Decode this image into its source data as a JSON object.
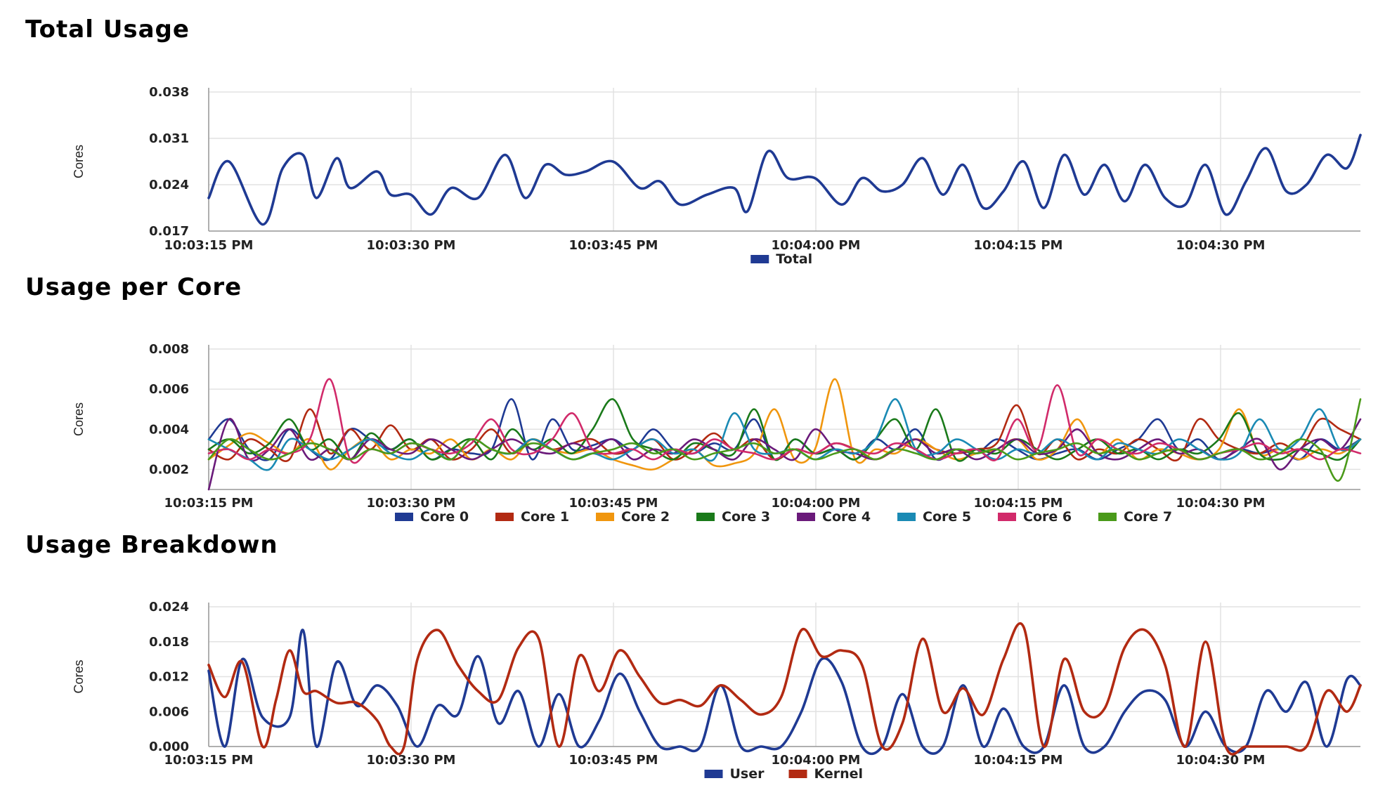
{
  "chart_data": [
    {
      "type": "line",
      "title": "Total Usage",
      "ylabel": "Cores",
      "xlabel": "",
      "ylim": [
        0.017,
        0.038
      ],
      "yticks": [
        "0.038",
        "0.031",
        "0.024",
        "0.017"
      ],
      "x_ticks": [
        "10:03:15 PM",
        "10:03:30 PM",
        "10:03:45 PM",
        "10:04:00 PM",
        "10:04:15 PM",
        "10:04:30 PM"
      ],
      "x_range": [
        0,
        85.5
      ],
      "grid": true,
      "legend_position": "bottom-center",
      "series": [
        {
          "name": "Total",
          "color": "#1f3a93",
          "x": [
            0,
            1.5,
            4,
            5.5,
            7,
            8,
            9.5,
            10.5,
            12.5,
            13.5,
            15,
            16.5,
            18,
            20,
            22,
            23.5,
            25,
            26.5,
            28,
            30,
            32,
            33.5,
            35,
            37,
            39,
            40,
            41.5,
            43,
            45,
            47,
            48.5,
            50,
            51.5,
            53,
            54.5,
            56,
            57.5,
            59,
            60.5,
            62,
            63.5,
            65,
            66.5,
            68,
            69.5,
            71,
            72.5,
            74,
            75.5,
            77,
            78.5,
            80,
            81.5,
            83,
            84.5,
            85.5
          ],
          "values": [
            0.022,
            0.0275,
            0.018,
            0.0265,
            0.0285,
            0.022,
            0.028,
            0.0235,
            0.026,
            0.0225,
            0.0225,
            0.0195,
            0.0235,
            0.022,
            0.0285,
            0.022,
            0.027,
            0.0255,
            0.026,
            0.0275,
            0.0235,
            0.0245,
            0.021,
            0.0225,
            0.0235,
            0.02,
            0.029,
            0.025,
            0.025,
            0.021,
            0.025,
            0.023,
            0.024,
            0.028,
            0.0225,
            0.027,
            0.0205,
            0.023,
            0.0275,
            0.0205,
            0.0285,
            0.0225,
            0.027,
            0.0215,
            0.027,
            0.022,
            0.021,
            0.027,
            0.0195,
            0.0245,
            0.0295,
            0.023,
            0.024,
            0.0285,
            0.0265,
            0.0315
          ]
        }
      ]
    },
    {
      "type": "line",
      "title": "Usage per Core",
      "ylabel": "Cores",
      "xlabel": "",
      "ylim": [
        0.001,
        0.008
      ],
      "yticks": [
        "0.008",
        "0.006",
        "0.004",
        "0.002"
      ],
      "x_ticks": [
        "10:03:15 PM",
        "10:03:30 PM",
        "10:03:45 PM",
        "10:04:00 PM",
        "10:04:15 PM",
        "10:04:30 PM"
      ],
      "x_range": [
        0,
        85.5
      ],
      "grid": true,
      "legend_position": "bottom-center",
      "x": [
        0,
        1.5,
        3,
        4.5,
        6,
        7.5,
        9,
        10.5,
        12,
        13.5,
        15,
        16.5,
        18,
        19.5,
        21,
        22.5,
        24,
        25.5,
        27,
        28.5,
        30,
        31.5,
        33,
        34.5,
        36,
        37.5,
        39,
        40.5,
        42,
        43.5,
        45,
        46.5,
        48,
        49.5,
        51,
        52.5,
        54,
        55.5,
        57,
        58.5,
        60,
        61.5,
        63,
        64.5,
        66,
        67.5,
        69,
        70.5,
        72,
        73.5,
        75,
        76.5,
        78,
        79.5,
        81,
        82.5,
        84,
        85.5
      ],
      "series": [
        {
          "name": "Core 0",
          "color": "#1f3a93",
          "values": [
            0.0035,
            0.0045,
            0.003,
            0.0025,
            0.004,
            0.003,
            0.0025,
            0.004,
            0.0035,
            0.003,
            0.0035,
            0.0025,
            0.003,
            0.0028,
            0.003,
            0.0055,
            0.0025,
            0.0045,
            0.003,
            0.0032,
            0.0035,
            0.003,
            0.004,
            0.003,
            0.0028,
            0.0033,
            0.003,
            0.0045,
            0.0025,
            0.0035,
            0.0028,
            0.003,
            0.0025,
            0.0035,
            0.003,
            0.004,
            0.0025,
            0.003,
            0.0028,
            0.0035,
            0.003,
            0.0025,
            0.0028,
            0.003,
            0.0025,
            0.003,
            0.0035,
            0.0045,
            0.003,
            0.0035,
            0.0025,
            0.003,
            0.0028,
            0.003,
            0.0025,
            0.0035,
            0.003,
            0.0035
          ]
        },
        {
          "name": "Core 1",
          "color": "#b22a12",
          "values": [
            0.003,
            0.0025,
            0.0035,
            0.003,
            0.0025,
            0.005,
            0.0028,
            0.004,
            0.003,
            0.0042,
            0.003,
            0.0035,
            0.0025,
            0.003,
            0.004,
            0.0028,
            0.0035,
            0.003,
            0.0033,
            0.0035,
            0.0028,
            0.003,
            0.0035,
            0.0025,
            0.003,
            0.0038,
            0.003,
            0.0035,
            0.0025,
            0.003,
            0.0028,
            0.0033,
            0.003,
            0.0025,
            0.003,
            0.0035,
            0.003,
            0.0028,
            0.003,
            0.0033,
            0.0052,
            0.0028,
            0.0035,
            0.0025,
            0.003,
            0.0028,
            0.0035,
            0.003,
            0.0025,
            0.0045,
            0.0035,
            0.003,
            0.0028,
            0.0033,
            0.003,
            0.0045,
            0.004,
            0.0035
          ]
        },
        {
          "name": "Core 2",
          "color": "#f0960e",
          "values": [
            0.0025,
            0.0032,
            0.0038,
            0.0033,
            0.0028,
            0.0035,
            0.002,
            0.003,
            0.0035,
            0.0025,
            0.003,
            0.0028,
            0.0035,
            0.0025,
            0.003,
            0.0025,
            0.0035,
            0.003,
            0.0028,
            0.003,
            0.0025,
            0.0022,
            0.002,
            0.0025,
            0.003,
            0.0022,
            0.0023,
            0.0028,
            0.005,
            0.0025,
            0.003,
            0.0065,
            0.0025,
            0.003,
            0.0028,
            0.0035,
            0.003,
            0.0025,
            0.0028,
            0.003,
            0.0035,
            0.0025,
            0.003,
            0.0045,
            0.0028,
            0.0035,
            0.0025,
            0.003,
            0.0028,
            0.0025,
            0.003,
            0.005,
            0.0028,
            0.003,
            0.0025,
            0.003,
            0.0028,
            0.0035
          ]
        },
        {
          "name": "Core 3",
          "color": "#1a7a1a",
          "values": [
            0.003,
            0.0035,
            0.0028,
            0.0033,
            0.0045,
            0.003,
            0.0035,
            0.0025,
            0.0038,
            0.003,
            0.0035,
            0.0025,
            0.003,
            0.0035,
            0.0025,
            0.004,
            0.003,
            0.0035,
            0.0028,
            0.004,
            0.0055,
            0.0035,
            0.003,
            0.0025,
            0.0033,
            0.003,
            0.0028,
            0.005,
            0.0025,
            0.0035,
            0.0028,
            0.003,
            0.0025,
            0.0035,
            0.0045,
            0.003,
            0.005,
            0.0025,
            0.003,
            0.0028,
            0.0035,
            0.003,
            0.0025,
            0.003,
            0.0035,
            0.0028,
            0.003,
            0.0025,
            0.003,
            0.0028,
            0.0035,
            0.0048,
            0.0028,
            0.0025,
            0.003,
            0.0028,
            0.0025,
            0.0035
          ]
        },
        {
          "name": "Core 4",
          "color": "#6a1a7a",
          "values": [
            0.001,
            0.0045,
            0.0025,
            0.003,
            0.004,
            0.0025,
            0.003,
            0.0025,
            0.0035,
            0.003,
            0.0028,
            0.0035,
            0.003,
            0.0025,
            0.003,
            0.0035,
            0.003,
            0.0028,
            0.0033,
            0.003,
            0.0035,
            0.0025,
            0.003,
            0.0028,
            0.0035,
            0.003,
            0.0025,
            0.0035,
            0.003,
            0.0025,
            0.004,
            0.003,
            0.0028,
            0.0025,
            0.003,
            0.0035,
            0.0028,
            0.003,
            0.0025,
            0.003,
            0.0035,
            0.0028,
            0.003,
            0.004,
            0.0028,
            0.0025,
            0.003,
            0.0035,
            0.0028,
            0.003,
            0.0025,
            0.003,
            0.0035,
            0.002,
            0.003,
            0.0035,
            0.003,
            0.0045
          ]
        },
        {
          "name": "Core 5",
          "color": "#1a8ab4",
          "values": [
            0.0035,
            0.003,
            0.0025,
            0.002,
            0.0035,
            0.003,
            0.0025,
            0.003,
            0.0035,
            0.0028,
            0.0025,
            0.003,
            0.0025,
            0.0035,
            0.003,
            0.0028,
            0.0035,
            0.003,
            0.0025,
            0.0028,
            0.0025,
            0.003,
            0.0035,
            0.0028,
            0.003,
            0.0025,
            0.0048,
            0.003,
            0.0028,
            0.003,
            0.0025,
            0.003,
            0.0028,
            0.0035,
            0.0055,
            0.003,
            0.0028,
            0.0035,
            0.003,
            0.0025,
            0.003,
            0.0028,
            0.0035,
            0.003,
            0.0025,
            0.0033,
            0.003,
            0.0028,
            0.0035,
            0.003,
            0.0025,
            0.0028,
            0.0045,
            0.003,
            0.0035,
            0.005,
            0.003,
            0.0035
          ]
        },
        {
          "name": "Core 6",
          "color": "#d12a6a",
          "values": [
            0.0028,
            0.003,
            0.0025,
            0.003,
            0.0028,
            0.0035,
            0.0065,
            0.0025,
            0.003,
            0.0028,
            0.0033,
            0.003,
            0.0028,
            0.0033,
            0.0045,
            0.003,
            0.0028,
            0.0035,
            0.0048,
            0.003,
            0.0028,
            0.003,
            0.0025,
            0.003,
            0.0028,
            0.0035,
            0.003,
            0.0028,
            0.0025,
            0.003,
            0.0028,
            0.0033,
            0.003,
            0.0028,
            0.0033,
            0.003,
            0.0025,
            0.0028,
            0.003,
            0.0025,
            0.0045,
            0.003,
            0.0062,
            0.0028,
            0.0035,
            0.003,
            0.0028,
            0.0033,
            0.003,
            0.0025,
            0.0028,
            0.003,
            0.0033,
            0.0028,
            0.003,
            0.0025,
            0.003,
            0.0028
          ]
        },
        {
          "name": "Core 7",
          "color": "#4a9a1a",
          "values": [
            0.0025,
            0.0035,
            0.003,
            0.0025,
            0.0028,
            0.0033,
            0.003,
            0.0025,
            0.003,
            0.0028,
            0.0033,
            0.003,
            0.0025,
            0.0035,
            0.003,
            0.0028,
            0.0033,
            0.003,
            0.0025,
            0.0028,
            0.003,
            0.0033,
            0.0028,
            0.003,
            0.0025,
            0.0028,
            0.003,
            0.0033,
            0.0028,
            0.003,
            0.0025,
            0.0028,
            0.003,
            0.0025,
            0.003,
            0.0028,
            0.0025,
            0.003,
            0.0028,
            0.003,
            0.0025,
            0.0028,
            0.003,
            0.0033,
            0.0028,
            0.003,
            0.0025,
            0.0028,
            0.003,
            0.0025,
            0.0028,
            0.003,
            0.0025,
            0.0028,
            0.0035,
            0.003,
            0.0015,
            0.0055
          ]
        }
      ]
    },
    {
      "type": "line",
      "title": "Usage Breakdown",
      "ylabel": "Cores",
      "xlabel": "",
      "ylim": [
        0.0,
        0.024
      ],
      "yticks": [
        "0.024",
        "0.018",
        "0.012",
        "0.006",
        "0.000"
      ],
      "x_ticks": [
        "10:03:15 PM",
        "10:03:30 PM",
        "10:03:45 PM",
        "10:04:00 PM",
        "10:04:15 PM",
        "10:04:30 PM"
      ],
      "x_range": [
        0,
        85.5
      ],
      "grid": true,
      "legend_position": "bottom-center",
      "series": [
        {
          "name": "User",
          "color": "#1f3a93",
          "x": [
            0,
            1.2,
            2.5,
            4,
            6,
            7,
            8,
            9.5,
            11,
            12.5,
            14,
            15.5,
            17,
            18.5,
            20,
            21.5,
            23,
            24.5,
            26,
            27.5,
            29,
            30.5,
            32,
            33.5,
            35,
            36.5,
            38,
            39.5,
            41,
            42.5,
            44,
            45.5,
            47,
            48.5,
            50,
            51.5,
            53,
            54.5,
            56,
            57.5,
            59,
            60.5,
            62,
            63.5,
            65,
            66.5,
            68,
            69.5,
            71,
            72.5,
            74,
            75.5,
            77,
            78.5,
            80,
            81.5,
            83,
            84.5,
            85.5
          ],
          "values": [
            0.013,
            0.0,
            0.015,
            0.005,
            0.005,
            0.02,
            0.0,
            0.0145,
            0.007,
            0.0105,
            0.007,
            0.0,
            0.007,
            0.0055,
            0.0155,
            0.004,
            0.0095,
            0.0,
            0.009,
            0.0,
            0.0045,
            0.0125,
            0.006,
            0.0,
            0.0,
            0.0,
            0.0105,
            0.0,
            0.0,
            0.0,
            0.006,
            0.015,
            0.011,
            0.0,
            0.0,
            0.009,
            0.0,
            0.0,
            0.0105,
            0.0,
            0.0065,
            0.0,
            0.0,
            0.0105,
            0.0,
            0.0,
            0.006,
            0.0095,
            0.008,
            0.0,
            0.006,
            0.0,
            0.0,
            0.0095,
            0.006,
            0.011,
            0.0,
            0.0115,
            0.0105
          ]
        },
        {
          "name": "Kernel",
          "color": "#b22a12",
          "x": [
            0,
            1.2,
            2.5,
            4,
            5,
            6,
            7,
            8,
            9.5,
            11,
            12.5,
            13.5,
            14.5,
            15.5,
            17,
            18.5,
            20,
            21.5,
            23,
            24.5,
            26,
            27.5,
            29,
            30.5,
            32,
            33.5,
            35,
            36.5,
            38,
            39.5,
            41,
            42.5,
            44,
            45.5,
            47,
            48.5,
            50,
            51.5,
            53,
            54.5,
            56,
            57.5,
            59,
            60.5,
            62,
            63.5,
            65,
            66.5,
            68,
            69.5,
            71,
            72.5,
            74,
            75.5,
            77,
            78.5,
            80,
            81.5,
            83,
            84.5,
            85.5
          ],
          "values": [
            0.014,
            0.0085,
            0.0145,
            0.0,
            0.008,
            0.0165,
            0.0095,
            0.0095,
            0.0075,
            0.0075,
            0.0045,
            0.0,
            0.0,
            0.015,
            0.02,
            0.014,
            0.0095,
            0.008,
            0.017,
            0.0185,
            0.0,
            0.0155,
            0.0095,
            0.0165,
            0.012,
            0.0075,
            0.008,
            0.007,
            0.0105,
            0.008,
            0.0055,
            0.0085,
            0.02,
            0.0155,
            0.0165,
            0.014,
            0.0,
            0.004,
            0.0185,
            0.006,
            0.01,
            0.0055,
            0.015,
            0.0205,
            0.0,
            0.015,
            0.006,
            0.0065,
            0.017,
            0.02,
            0.014,
            0.0,
            0.018,
            0.0,
            0.0,
            0.0,
            0.0,
            0.0,
            0.0095,
            0.006,
            0.0105
          ]
        }
      ]
    }
  ]
}
